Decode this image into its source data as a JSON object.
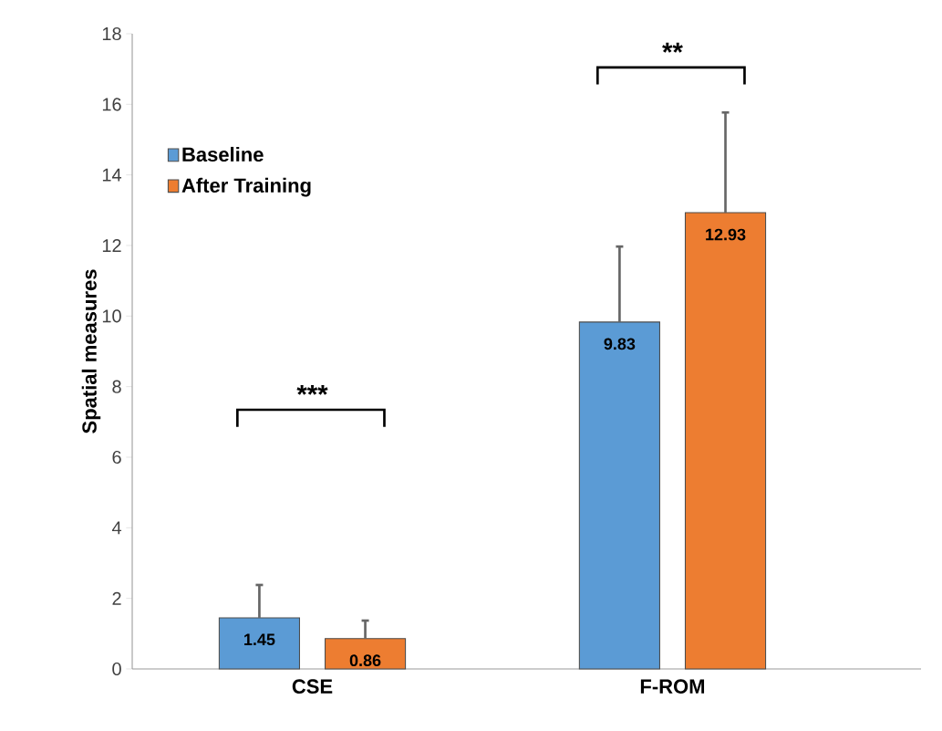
{
  "chart_data": {
    "type": "bar",
    "ylabel": "Spatial measures",
    "categories": [
      "CSE",
      "F-ROM"
    ],
    "series": [
      {
        "name": "Baseline",
        "color": "#5b9bd5",
        "values": [
          1.45,
          9.83
        ],
        "errors": [
          [
            1.45,
            2.38
          ],
          [
            9.83,
            11.97
          ]
        ]
      },
      {
        "name": "After Training",
        "color": "#ed7d31",
        "values": [
          0.86,
          12.93
        ],
        "errors": [
          [
            0.86,
            1.37
          ],
          [
            12.93,
            15.77
          ]
        ]
      }
    ],
    "ylim": [
      0,
      18
    ],
    "yticks": [
      0,
      2,
      4,
      6,
      8,
      10,
      12,
      14,
      16,
      18
    ],
    "data_labels": true,
    "legend": "top left",
    "annotations": [
      "***",
      "**"
    ]
  }
}
